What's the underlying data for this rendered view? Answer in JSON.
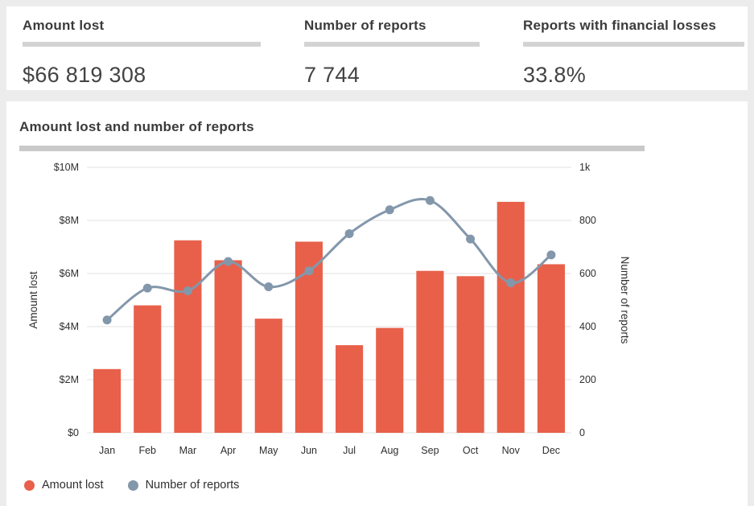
{
  "stats": [
    {
      "label": "Amount lost",
      "value": "$66 819 308"
    },
    {
      "label": "Number of reports",
      "value": "7 744"
    },
    {
      "label": "Reports with financial losses",
      "value": "33.8%"
    }
  ],
  "chart_section": {
    "title": "Amount lost and number of reports"
  },
  "chart_data": {
    "type": "bar+line combo",
    "categories": [
      "Jan",
      "Feb",
      "Mar",
      "Apr",
      "May",
      "Jun",
      "Jul",
      "Aug",
      "Sep",
      "Oct",
      "Nov",
      "Dec"
    ],
    "series": [
      {
        "name": "Amount lost",
        "type": "bar",
        "axis": "left",
        "unit": "$M",
        "color": "#e8604a",
        "values": [
          2.4,
          4.8,
          7.25,
          6.5,
          4.3,
          7.2,
          3.3,
          3.95,
          6.1,
          5.9,
          8.7,
          6.35
        ]
      },
      {
        "name": "Number of reports",
        "type": "line",
        "axis": "right",
        "color": "#8397ab",
        "values": [
          425,
          545,
          535,
          645,
          550,
          610,
          750,
          840,
          875,
          730,
          565,
          670
        ]
      }
    ],
    "left_axis": {
      "label": "Amount lost",
      "min": 0,
      "max": 10,
      "ticks": [
        "$0",
        "$2M",
        "$4M",
        "$6M",
        "$8M",
        "$10M"
      ]
    },
    "right_axis": {
      "label": "Number of reports",
      "min": 0,
      "max": 1000,
      "ticks": [
        "0",
        "200",
        "400",
        "600",
        "800",
        "1k"
      ]
    },
    "grid": true,
    "legend_position": "bottom-left",
    "legend": [
      {
        "label": "Amount lost",
        "color": "#e8604a"
      },
      {
        "label": "Number of reports",
        "color": "#8397ab"
      }
    ]
  }
}
